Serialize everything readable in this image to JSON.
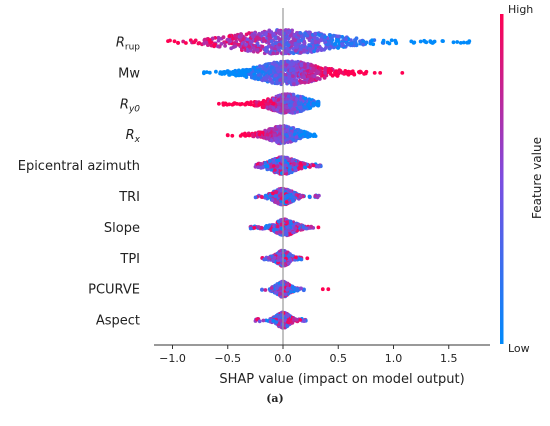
{
  "chart_data": {
    "type": "beeswarm",
    "xlabel": "SHAP value (impact on model output)",
    "xlim": [
      -1.2,
      1.85
    ],
    "xticks": [
      -1.0,
      -0.5,
      0.0,
      0.5,
      1.0,
      1.5
    ],
    "xtick_labels": [
      "−1.0",
      "−0.5",
      "0.0",
      "0.5",
      "1.0",
      "1.5"
    ],
    "colorbar": {
      "label": "Feature value",
      "high": "High",
      "low": "Low",
      "low_color": "#008afb",
      "mid_color": "#7c4de0",
      "high_color": "#ff0052"
    },
    "features": [
      {
        "name": "R",
        "sub": "rup",
        "italic": true,
        "min": -1.05,
        "max": 1.72,
        "peak": 0.0,
        "spread": 0.62,
        "density": 1.0,
        "outliers": []
      },
      {
        "name": "Mw",
        "sub": "",
        "italic": false,
        "min": -0.72,
        "max": 0.78,
        "peak": 0.05,
        "spread": 0.38,
        "density": 0.95,
        "outliers": [
          0.83,
          0.88,
          1.08
        ]
      },
      {
        "name": "R",
        "sub": "y0",
        "italic": true,
        "min": -0.55,
        "max": 0.32,
        "peak": 0.05,
        "spread": 0.22,
        "density": 0.7,
        "outliers": [
          -0.58
        ]
      },
      {
        "name": "R",
        "sub": "x",
        "italic": true,
        "min": -0.52,
        "max": 0.3,
        "peak": 0.0,
        "spread": 0.18,
        "density": 0.6,
        "outliers": []
      },
      {
        "name": "Epicentral azimuth",
        "sub": "",
        "italic": false,
        "min": -0.25,
        "max": 0.36,
        "peak": 0.0,
        "spread": 0.16,
        "density": 0.55,
        "outliers": []
      },
      {
        "name": "TRI",
        "sub": "",
        "italic": false,
        "min": -0.25,
        "max": 0.33,
        "peak": 0.0,
        "spread": 0.12,
        "density": 0.5,
        "outliers": []
      },
      {
        "name": "Slope",
        "sub": "",
        "italic": false,
        "min": -0.3,
        "max": 0.28,
        "peak": 0.02,
        "spread": 0.12,
        "density": 0.5,
        "outliers": [
          0.32
        ]
      },
      {
        "name": "TPI",
        "sub": "",
        "italic": false,
        "min": -0.2,
        "max": 0.2,
        "peak": 0.0,
        "spread": 0.08,
        "density": 0.45,
        "outliers": [
          0.22
        ]
      },
      {
        "name": "PCURVE",
        "sub": "",
        "italic": false,
        "min": -0.2,
        "max": 0.2,
        "peak": 0.0,
        "spread": 0.08,
        "density": 0.45,
        "outliers": [
          0.36,
          0.41
        ]
      },
      {
        "name": "Aspect",
        "sub": "",
        "italic": false,
        "min": -0.25,
        "max": 0.22,
        "peak": 0.0,
        "spread": 0.08,
        "density": 0.45,
        "outliers": []
      }
    ]
  },
  "caption": "(a)"
}
